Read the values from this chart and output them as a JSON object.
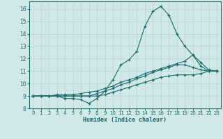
{
  "xlabel": "Humidex (Indice chaleur)",
  "ylabel": "",
  "background_color": "#d0e8e8",
  "line_color": "#1a6b6b",
  "grid_color": "#c0d8d8",
  "xlim": [
    -0.5,
    23.5
  ],
  "ylim": [
    8,
    16.6
  ],
  "yticks": [
    8,
    9,
    10,
    11,
    12,
    13,
    14,
    15,
    16
  ],
  "xticks": [
    0,
    1,
    2,
    3,
    4,
    5,
    6,
    7,
    8,
    9,
    10,
    11,
    12,
    13,
    14,
    15,
    16,
    17,
    18,
    19,
    20,
    21,
    22,
    23
  ],
  "series": [
    {
      "x": [
        0,
        1,
        2,
        3,
        4,
        5,
        6,
        7,
        8,
        9,
        10,
        11,
        12,
        13,
        14,
        15,
        16,
        17,
        18,
        19,
        20,
        21,
        22,
        23
      ],
      "y": [
        9.0,
        9.0,
        9.0,
        9.0,
        8.8,
        8.8,
        8.7,
        8.4,
        8.8,
        9.4,
        10.3,
        11.5,
        11.9,
        12.6,
        14.6,
        15.8,
        16.2,
        15.5,
        14.0,
        13.0,
        12.3,
        11.4,
        11.0,
        11.0
      ]
    },
    {
      "x": [
        0,
        1,
        2,
        3,
        4,
        5,
        6,
        7,
        8,
        9,
        10,
        11,
        12,
        13,
        14,
        15,
        16,
        17,
        18,
        19,
        20,
        21,
        22,
        23
      ],
      "y": [
        9.0,
        9.0,
        9.0,
        9.1,
        9.1,
        9.1,
        9.2,
        9.3,
        9.4,
        9.6,
        9.8,
        10.1,
        10.3,
        10.5,
        10.8,
        11.0,
        11.2,
        11.4,
        11.6,
        11.8,
        12.3,
        11.7,
        11.1,
        11.0
      ]
    },
    {
      "x": [
        0,
        1,
        2,
        3,
        4,
        5,
        6,
        7,
        8,
        9,
        10,
        11,
        12,
        13,
        14,
        15,
        16,
        17,
        18,
        19,
        20,
        21,
        22,
        23
      ],
      "y": [
        9.0,
        9.0,
        9.0,
        9.0,
        9.0,
        9.0,
        9.0,
        9.0,
        9.2,
        9.4,
        9.6,
        9.9,
        10.1,
        10.4,
        10.6,
        10.9,
        11.1,
        11.3,
        11.5,
        11.5,
        11.3,
        11.1,
        11.0,
        11.0
      ]
    },
    {
      "x": [
        0,
        1,
        2,
        3,
        4,
        5,
        6,
        7,
        8,
        9,
        10,
        11,
        12,
        13,
        14,
        15,
        16,
        17,
        18,
        19,
        20,
        21,
        22,
        23
      ],
      "y": [
        9.0,
        9.0,
        9.0,
        9.0,
        9.0,
        9.0,
        9.0,
        9.0,
        9.0,
        9.1,
        9.3,
        9.5,
        9.7,
        9.9,
        10.1,
        10.3,
        10.5,
        10.6,
        10.7,
        10.7,
        10.7,
        10.8,
        11.0,
        11.0
      ]
    }
  ]
}
